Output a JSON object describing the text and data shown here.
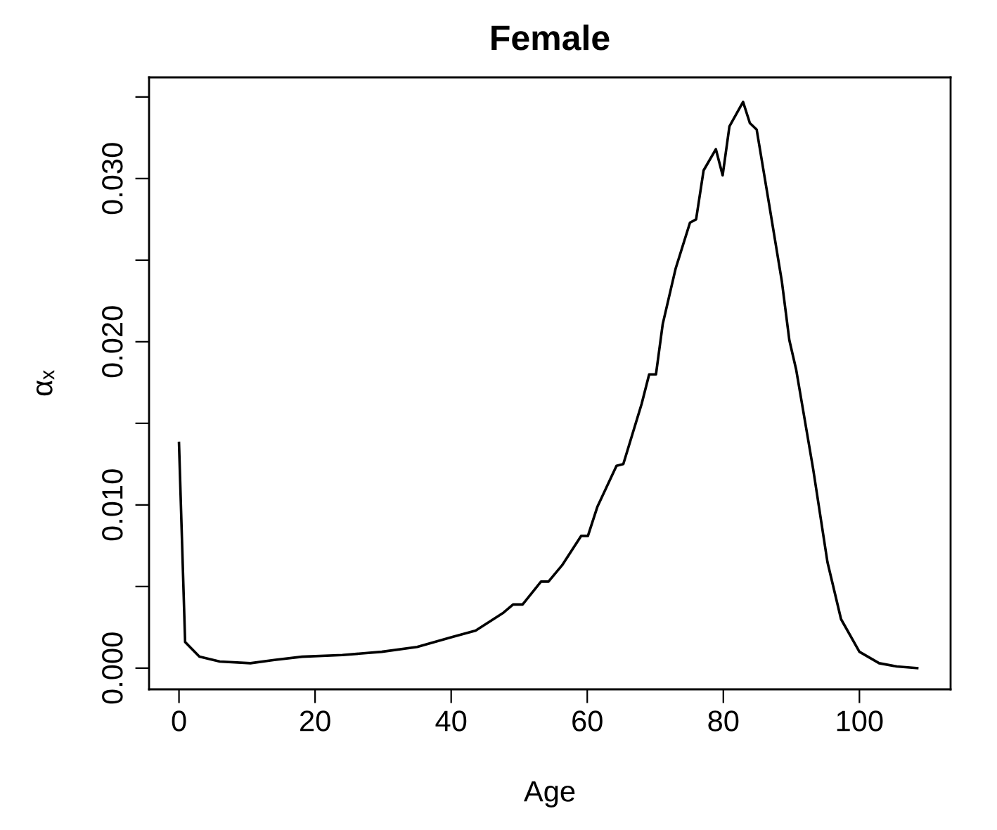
{
  "chart_data": {
    "type": "line",
    "title": "Female",
    "xlabel": "Age",
    "ylabel": "αₓ",
    "x": [
      0,
      0.9,
      3,
      6,
      10.5,
      14,
      18.1,
      24,
      29.8,
      35,
      40.1,
      43.6,
      47.7,
      49.1,
      50.5,
      53.2,
      54.3,
      56.3,
      59.1,
      60.1,
      61.5,
      64.3,
      65.3,
      68.0,
      69.1,
      70.1,
      71.1,
      73,
      75.1,
      76,
      77.1,
      78.9,
      79.9,
      80.9,
      82.9,
      83.9,
      84.9,
      86.7,
      88.6,
      89.7,
      90.7,
      93.2,
      95.3,
      97.3,
      100,
      102.9,
      105.5,
      108.5
    ],
    "series": [
      {
        "color": "#000000",
        "values": [
          0.0138,
          0.0016,
          0.0007,
          0.0004,
          0.0003,
          0.0005,
          0.0007,
          0.0008,
          0.001,
          0.0013,
          0.0019,
          0.0023,
          0.0034,
          0.0039,
          0.0039,
          0.0053,
          0.0053,
          0.0063,
          0.0081,
          0.0081,
          0.0099,
          0.0124,
          0.0125,
          0.0162,
          0.018,
          0.018,
          0.0211,
          0.0245,
          0.0273,
          0.0275,
          0.0305,
          0.0318,
          0.0302,
          0.0332,
          0.0347,
          0.0334,
          0.033,
          0.0285,
          0.0237,
          0.0201,
          0.0183,
          0.0122,
          0.0065,
          0.003,
          0.001,
          0.0003,
          0.0001,
          0.0
        ]
      }
    ],
    "xlim": [
      -4.4,
      113.4
    ],
    "ylim": [
      -0.0013,
      0.0362
    ],
    "xticks": [
      0,
      20,
      40,
      60,
      80,
      100
    ],
    "yticks": [
      {
        "value": 0,
        "label": "0.000"
      },
      {
        "value": 0.01,
        "label": "0.010"
      },
      {
        "value": 0.02,
        "label": "0.020"
      },
      {
        "value": 0.03,
        "label": "0.030"
      },
      {
        "value": 0.005,
        "label": null
      },
      {
        "value": 0.015,
        "label": null
      },
      {
        "value": 0.025,
        "label": null
      },
      {
        "value": 0.035,
        "label": null
      }
    ],
    "grid": false,
    "legend": false,
    "marker": "none",
    "line_style": "solid"
  }
}
